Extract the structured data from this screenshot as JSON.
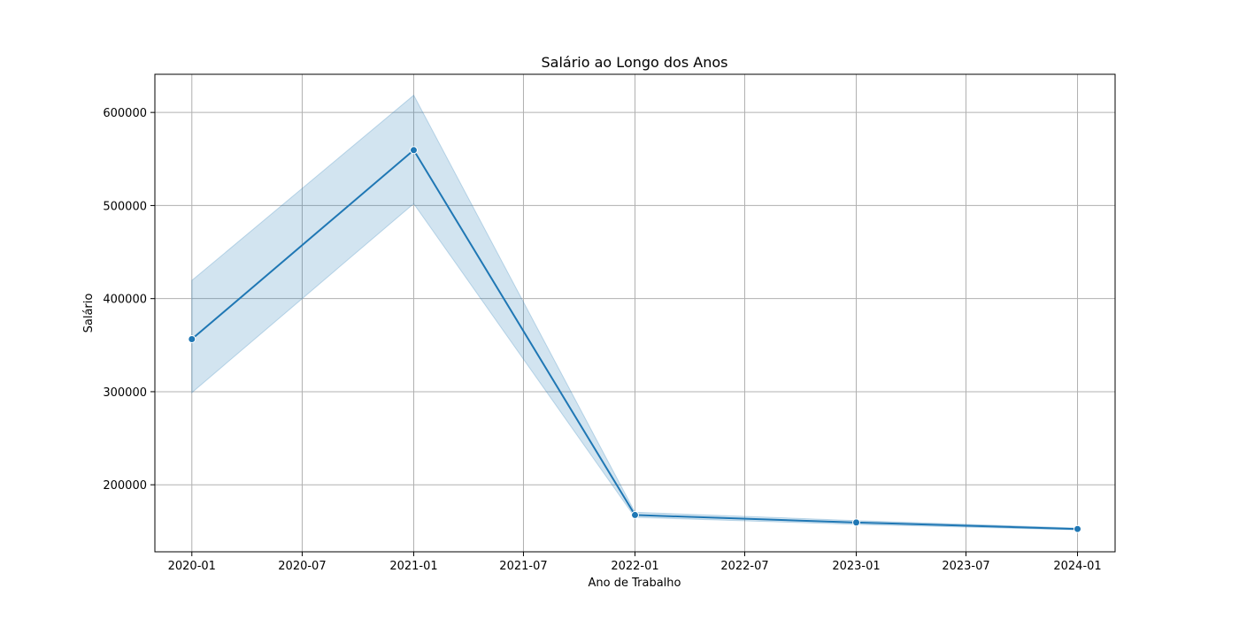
{
  "chart_data": {
    "type": "line",
    "title": "Salário ao Longo dos Anos",
    "xlabel": "Ano de Trabalho",
    "ylabel": "Salário",
    "x_ticks": [
      {
        "date": "2020-01-01",
        "label": "2020-01"
      },
      {
        "date": "2020-07-01",
        "label": "2020-07"
      },
      {
        "date": "2021-01-01",
        "label": "2021-01"
      },
      {
        "date": "2021-07-01",
        "label": "2021-07"
      },
      {
        "date": "2022-01-01",
        "label": "2022-01"
      },
      {
        "date": "2022-07-01",
        "label": "2022-07"
      },
      {
        "date": "2023-01-01",
        "label": "2023-01"
      },
      {
        "date": "2023-07-01",
        "label": "2023-07"
      },
      {
        "date": "2024-01-01",
        "label": "2024-01"
      }
    ],
    "y_ticks": [
      200000,
      300000,
      400000,
      500000,
      600000
    ],
    "xlim": [
      "2019-11-01",
      "2024-03-03"
    ],
    "ylim": [
      128000,
      641000
    ],
    "grid": true,
    "series": [
      {
        "x": [
          "2020-01-01",
          "2021-01-01",
          "2022-01-01",
          "2023-01-01",
          "2024-01-01"
        ],
        "values": [
          356500,
          559500,
          167500,
          159500,
          152500
        ],
        "ci_lower": [
          299000,
          502000,
          165000,
          157500,
          151500
        ],
        "ci_upper": [
          419500,
          618500,
          170500,
          161500,
          153500
        ],
        "color": "#1f77b4",
        "band_color": "#1f77b4",
        "markers": true
      }
    ]
  }
}
